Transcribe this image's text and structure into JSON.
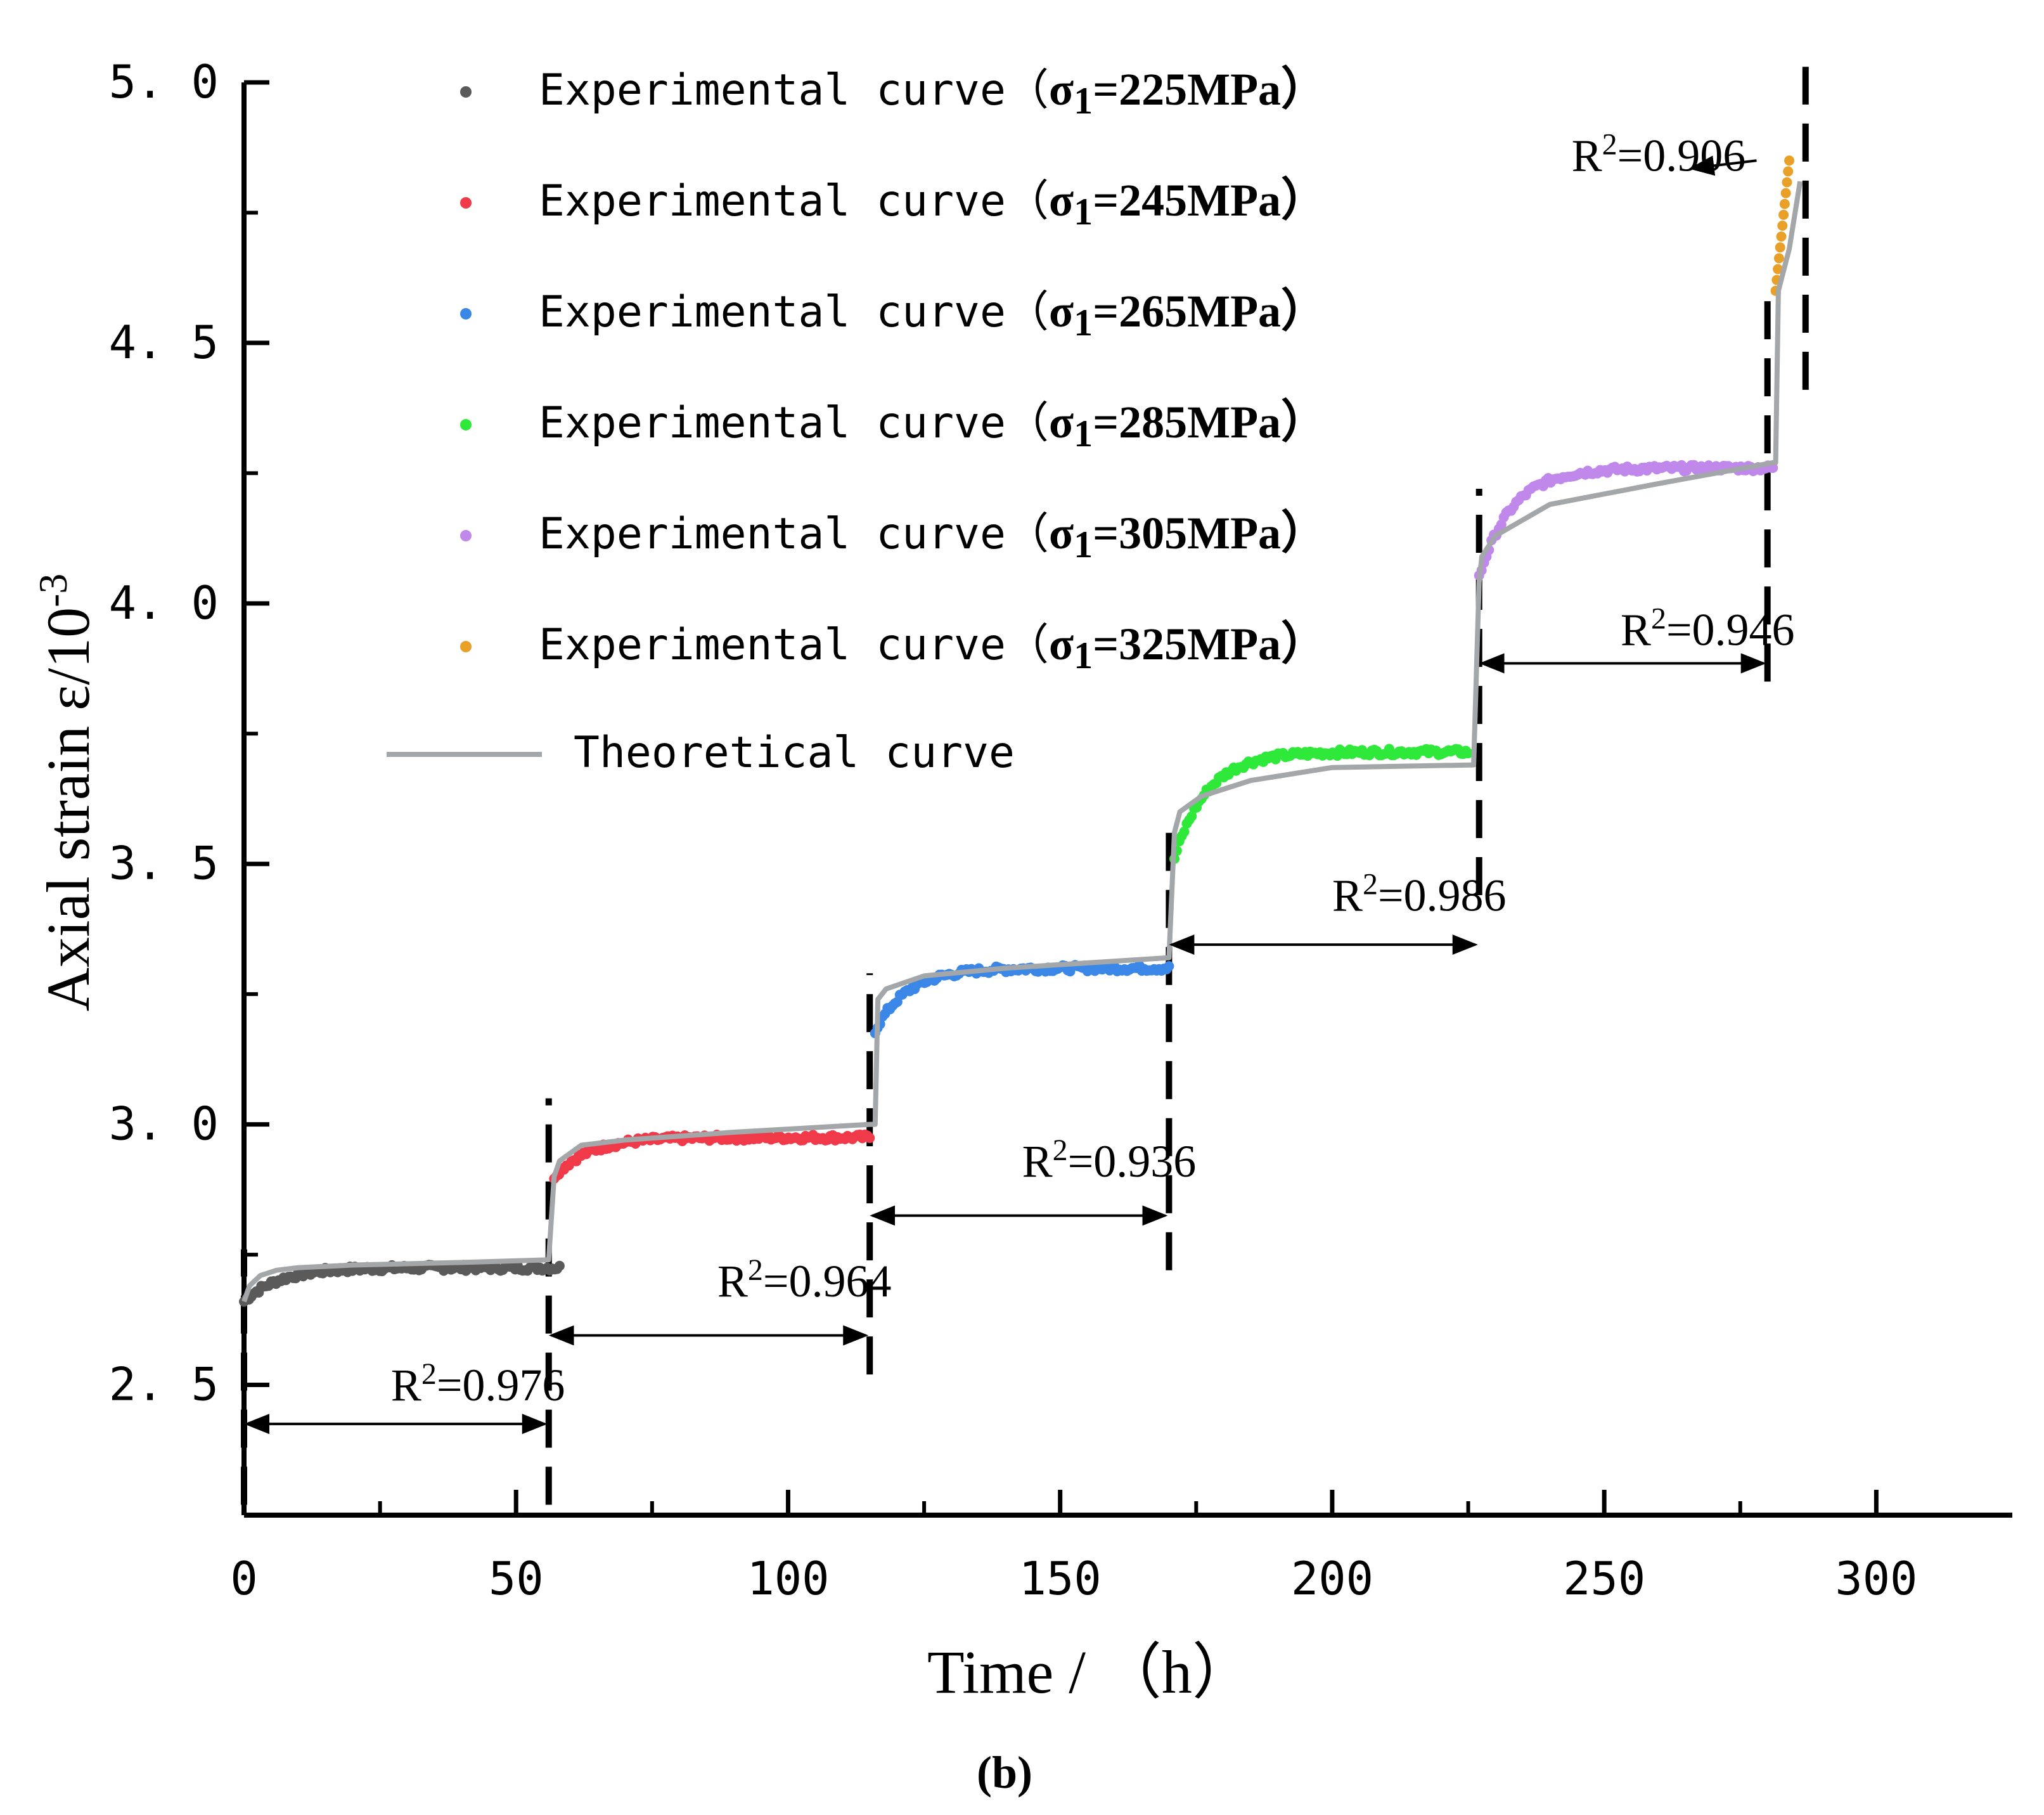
{
  "chart_data": {
    "type": "scatter",
    "title": "",
    "xlabel": "Time / （h）",
    "ylabel": "Axial strain ε/10",
    "ylabel_sup": "-3",
    "caption": "(b)",
    "xlim": [
      0,
      325
    ],
    "ylim": [
      2.25,
      5.0
    ],
    "x_ticks": [
      0,
      50,
      100,
      150,
      200,
      250,
      300
    ],
    "x_tick_labels": [
      "0",
      "50",
      "100",
      "150",
      "200",
      "250",
      "300"
    ],
    "y_ticks": [
      2.5,
      3.0,
      3.5,
      4.0,
      4.5,
      5.0
    ],
    "y_tick_labels": [
      "2. 5",
      "3. 0",
      "3. 5",
      "4. 0",
      "4. 5",
      "5. 0"
    ],
    "series": [
      {
        "name": "Experimental curve（σ1=225MPa）",
        "label_prefix": "Experimental curve（",
        "label_sigma": "σ",
        "label_sub": "1",
        "label_value": "=225MPa）",
        "color": "#5a5a5a",
        "t_start": 0,
        "t_end": 58,
        "base": 2.66,
        "final": 2.725,
        "x": [
          0,
          5,
          10,
          20,
          30,
          40,
          50,
          55,
          58
        ],
        "y": [
          2.67,
          2.71,
          2.72,
          2.725,
          2.72,
          2.725,
          2.73,
          2.725,
          2.725
        ]
      },
      {
        "name": "Experimental curve（σ1=245MPa）",
        "label_prefix": "Experimental curve（",
        "label_sigma": "σ",
        "label_sub": "1",
        "label_value": "=245MPa）",
        "color": "#f03a4a",
        "t_start": 57,
        "t_end": 115,
        "base": 2.9,
        "final": 2.975,
        "x": [
          57,
          60,
          65,
          75,
          85,
          95,
          105,
          115
        ],
        "y": [
          2.9,
          2.95,
          2.96,
          2.965,
          2.968,
          2.97,
          2.972,
          2.975
        ]
      },
      {
        "name": "Experimental curve（σ1=265MPa）",
        "label_prefix": "Experimental curve（",
        "label_sigma": "σ",
        "label_sub": "1",
        "label_value": "=265MPa）",
        "color": "#3a87e8",
        "t_start": 116,
        "t_end": 170,
        "base": 3.18,
        "final": 3.3,
        "x": [
          116,
          118,
          125,
          135,
          150,
          160,
          170
        ],
        "y": [
          3.18,
          3.23,
          3.26,
          3.28,
          3.29,
          3.295,
          3.3
        ]
      },
      {
        "name": "Experimental curve（σ1=285MPa）",
        "label_prefix": "Experimental curve（",
        "label_sigma": "σ",
        "label_sub": "1",
        "label_value": "=285MPa）",
        "color": "#2ee83a",
        "t_start": 171,
        "t_end": 225,
        "base": 3.51,
        "final": 3.715,
        "x": [
          171,
          173,
          180,
          190,
          200,
          210,
          220,
          225
        ],
        "y": [
          3.51,
          3.58,
          3.64,
          3.67,
          3.685,
          3.7,
          3.71,
          3.715
        ]
      },
      {
        "name": "Experimental curve（σ1=305MPa）",
        "label_prefix": "Experimental curve（",
        "label_sigma": "σ",
        "label_sub": "1",
        "label_value": "=305MPa）",
        "color": "#bf88ea",
        "t_start": 227,
        "t_end": 281,
        "base": 4.05,
        "final": 4.26,
        "x": [
          227,
          230,
          240,
          250,
          260,
          270,
          281
        ],
        "y": [
          4.05,
          4.1,
          4.17,
          4.2,
          4.22,
          4.24,
          4.26
        ]
      },
      {
        "name": "Experimental curve（σ1=325MPa）",
        "label_prefix": "Experimental curve（",
        "label_sigma": "σ",
        "label_sub": "1",
        "label_value": "=325MPa）",
        "color": "#e8a028",
        "t_start": 281.5,
        "t_end": 284,
        "base": 4.6,
        "final": 4.85,
        "x": [
          281.5,
          282,
          282.5,
          283,
          283.5,
          284
        ],
        "y": [
          4.6,
          4.66,
          4.72,
          4.77,
          4.81,
          4.85
        ]
      }
    ],
    "theoretical": {
      "name": "Theoretical curve",
      "color": "#a3a7a9",
      "x": [
        0,
        1,
        3,
        6,
        10,
        20,
        40,
        56,
        57,
        58,
        62,
        70,
        90,
        115,
        116,
        116.5,
        118,
        125,
        140,
        170,
        171,
        172,
        176,
        185,
        200,
        226,
        227,
        227.5,
        230,
        240,
        260,
        281,
        281.5,
        282,
        284,
        286
      ],
      "y": [
        2.66,
        2.69,
        2.71,
        2.72,
        2.725,
        2.73,
        2.735,
        2.74,
        2.9,
        2.93,
        2.96,
        2.97,
        2.985,
        3.0,
        3.0,
        3.24,
        3.26,
        3.285,
        3.3,
        3.32,
        3.56,
        3.6,
        3.63,
        3.66,
        3.685,
        3.69,
        4.04,
        4.09,
        4.13,
        4.19,
        4.23,
        4.27,
        4.27,
        4.6,
        4.68,
        4.81
      ]
    },
    "dividers": [
      {
        "x": 0,
        "y0": 2.27,
        "y1": 2.76
      },
      {
        "x": 56,
        "y0": 2.27,
        "y1": 3.05
      },
      {
        "x": 115,
        "y0": 2.52,
        "y1": 3.29
      },
      {
        "x": 170,
        "y0": 2.72,
        "y1": 3.59
      },
      {
        "x": 227,
        "y0": 3.44,
        "y1": 4.22
      },
      {
        "x": 280,
        "y0": 3.85,
        "y1": 4.59
      },
      {
        "x": 287,
        "y0": 4.41,
        "y1": 5.03
      }
    ],
    "annotations": [
      {
        "label": "R",
        "value": "=0.976",
        "text_x": 27,
        "text_y": 2.47,
        "arrow_y": 2.425,
        "x0": 0,
        "x1": 56
      },
      {
        "label": "R",
        "value": "=0.964",
        "text_x": 87,
        "text_y": 2.67,
        "arrow_y": 2.595,
        "x0": 56,
        "x1": 115
      },
      {
        "label": "R",
        "value": "=0.936",
        "text_x": 143,
        "text_y": 2.9,
        "arrow_y": 2.825,
        "x0": 115,
        "x1": 170
      },
      {
        "label": "R",
        "value": "=0.986",
        "text_x": 200,
        "text_y": 3.41,
        "arrow_y": 3.345,
        "x0": 170,
        "x1": 227
      },
      {
        "label": "R",
        "value": "=0.946",
        "text_x": 253,
        "text_y": 3.92,
        "arrow_y": 3.885,
        "x0": 227,
        "x1": 280
      },
      {
        "label": "R",
        "value": "=0.906",
        "text_x": 244,
        "text_y": 4.83,
        "arrow_to_x": 266,
        "arrow_to_y": 4.835,
        "arrow_from_x": 278,
        "arrow_from_y": 4.85
      }
    ],
    "r2_sup": "2"
  }
}
